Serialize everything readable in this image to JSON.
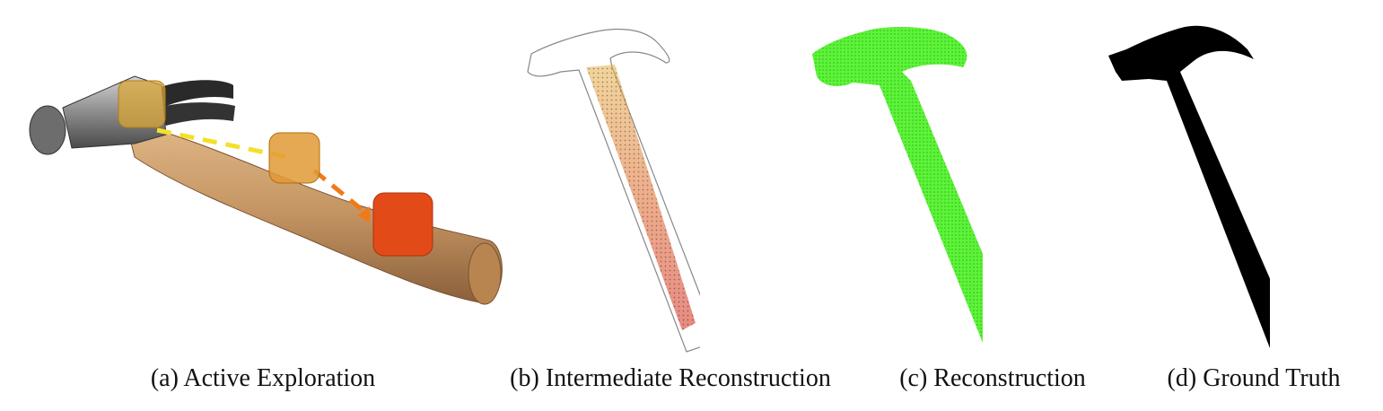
{
  "figure": {
    "panels": [
      {
        "id": "a",
        "caption": "(a) Active Exploration"
      },
      {
        "id": "b",
        "caption": "(b) Intermediate Reconstruction"
      },
      {
        "id": "c",
        "caption": "(c) Reconstruction"
      },
      {
        "id": "d",
        "caption": "(d) Ground Truth"
      }
    ],
    "colors": {
      "handle_wood": "#c49563",
      "steel_head": "#7e7e7e",
      "sensor_start": "#d8a536",
      "sensor_mid": "#e29a35",
      "sensor_end": "#e24b17",
      "path_yellow": "#f3e02b",
      "path_orange": "#f07a1a",
      "reconstruction_green": "#4ff02b",
      "ground_truth": "#000000"
    }
  }
}
